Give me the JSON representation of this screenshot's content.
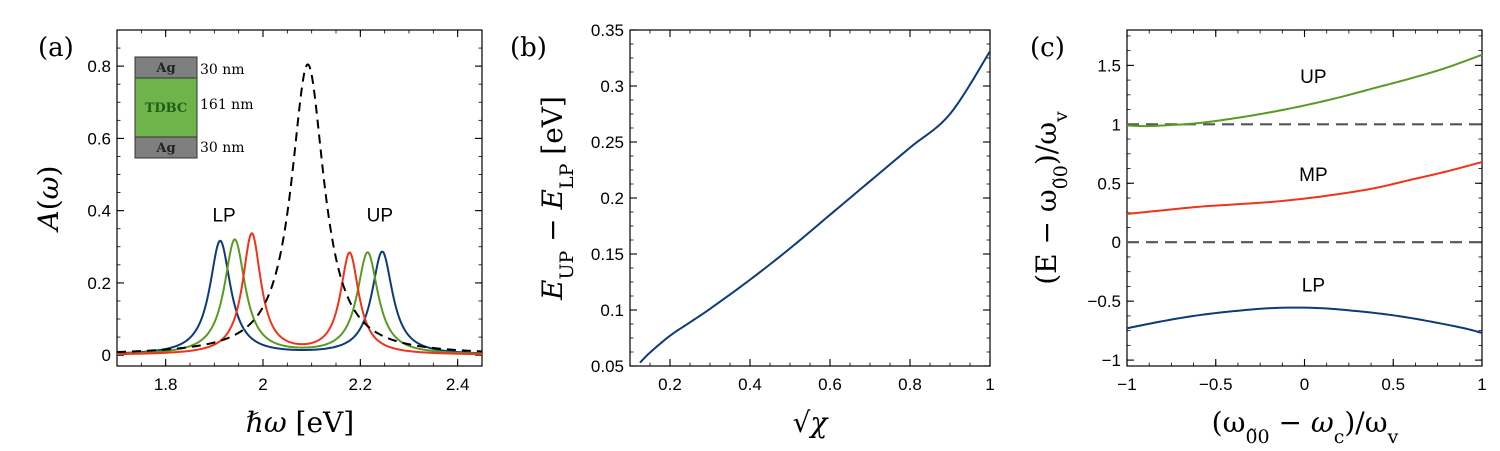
{
  "colors": {
    "blue": "#0d3a78",
    "green": "#5a9a23",
    "red": "#f0341a",
    "black": "#000000",
    "gray": "#555555",
    "ag": "#7f7f7f",
    "tdbc": "#6fb34b"
  },
  "panels": {
    "a": {
      "label": "(a)"
    },
    "b": {
      "label": "(b)"
    },
    "c": {
      "label": "(c)"
    }
  },
  "inset": {
    "layers": [
      {
        "name": "Ag",
        "thickness": "30 nm"
      },
      {
        "name": "TDBC",
        "thickness": "161 nm"
      },
      {
        "name": "Ag",
        "thickness": "30 nm"
      }
    ]
  },
  "chart_data": [
    {
      "id": "a",
      "type": "line",
      "xlabel_parts": [
        "ℏω",
        " [eV]"
      ],
      "ylabel_parts": [
        "A",
        "(",
        "ω",
        ")"
      ],
      "xlim": [
        1.7,
        2.45
      ],
      "ylim": [
        -0.03,
        0.9
      ],
      "xticks": [
        1.8,
        2.0,
        2.2,
        2.4
      ],
      "xtick_labels": [
        "1.8",
        "2",
        "2.2",
        "2.4"
      ],
      "yticks": [
        0,
        0.2,
        0.4,
        0.6,
        0.8
      ],
      "ytick_labels": [
        "0",
        "0.2",
        "0.4",
        "0.6",
        "0.8"
      ],
      "annotations": [
        {
          "text": "LP",
          "x": 1.92,
          "y": 0.37
        },
        {
          "text": "UP",
          "x": 2.24,
          "y": 0.37
        }
      ],
      "series": [
        {
          "color": "blue",
          "dash": false,
          "peaks": [
            {
              "x0": 1.912,
              "h": 0.315,
              "w": 0.026
            },
            {
              "x0": 2.245,
              "h": 0.285,
              "w": 0.026
            }
          ],
          "base": 0.0
        },
        {
          "color": "green",
          "dash": false,
          "peaks": [
            {
              "x0": 1.942,
              "h": 0.318,
              "w": 0.026
            },
            {
              "x0": 2.215,
              "h": 0.282,
              "w": 0.026
            }
          ],
          "base": 0.0
        },
        {
          "color": "red",
          "dash": false,
          "peaks": [
            {
              "x0": 1.977,
              "h": 0.334,
              "w": 0.023
            },
            {
              "x0": 2.178,
              "h": 0.28,
              "w": 0.023
            }
          ],
          "base": 0.0
        },
        {
          "color": "black",
          "dash": true,
          "peaks": [
            {
              "x0": 2.092,
              "h": 0.805,
              "w": 0.041
            }
          ],
          "base": 0.0
        }
      ]
    },
    {
      "id": "b",
      "type": "line",
      "xlabel_parts": [
        "√χ"
      ],
      "ylabel_parts": [
        "E",
        "UP",
        " − ",
        "E",
        "LP",
        "  [eV]"
      ],
      "xlim": [
        0.1,
        1.0
      ],
      "ylim": [
        0.05,
        0.35
      ],
      "xticks": [
        0.2,
        0.4,
        0.6,
        0.8,
        1.0
      ],
      "xtick_labels": [
        "0.2",
        "0.4",
        "0.6",
        "0.8",
        "1"
      ],
      "yticks": [
        0.05,
        0.1,
        0.15,
        0.2,
        0.25,
        0.3,
        0.35
      ],
      "ytick_labels": [
        "0.05",
        "0.1",
        "0.15",
        "0.2",
        "0.25",
        "0.3",
        "0.35"
      ],
      "series": [
        {
          "color": "blue",
          "dash": false,
          "x": [
            0.125,
            0.15,
            0.2,
            0.25,
            0.3,
            0.4,
            0.5,
            0.6,
            0.7,
            0.8,
            0.9,
            1.0
          ],
          "y": [
            0.053,
            0.062,
            0.077,
            0.089,
            0.101,
            0.127,
            0.155,
            0.185,
            0.215,
            0.245,
            0.275,
            0.331
          ]
        }
      ]
    },
    {
      "id": "c",
      "type": "line",
      "xlabel_parts": [
        "(ω",
        "0̃0",
        " − ω",
        "c",
        ")/ω",
        "v"
      ],
      "ylabel_parts": [
        "(E − ω",
        "0̃0",
        ")/ω",
        "v"
      ],
      "xlim": [
        -1.0,
        1.0
      ],
      "ylim": [
        -1.05,
        1.8
      ],
      "xticks": [
        -1.0,
        -0.5,
        0.0,
        0.5,
        1.0
      ],
      "xtick_labels": [
        "−1",
        "−0.5",
        "0",
        "0.5",
        "1"
      ],
      "yticks": [
        -1.0,
        -0.5,
        0.0,
        0.5,
        1.0,
        1.5
      ],
      "ytick_labels": [
        "−1",
        "−0.5",
        "0",
        "0.5",
        "1",
        "1.5"
      ],
      "hlines": [
        {
          "y": 1.0,
          "color": "gray",
          "dash": true
        },
        {
          "y": 0.0,
          "color": "gray",
          "dash": true
        }
      ],
      "annotations": [
        {
          "text": "UP",
          "x": 0.05,
          "y": 1.35
        },
        {
          "text": "MP",
          "x": 0.05,
          "y": 0.52
        },
        {
          "text": "LP",
          "x": 0.05,
          "y": -0.42
        }
      ],
      "series": [
        {
          "color": "green",
          "dash": false,
          "x": [
            -1.0,
            -0.9,
            -0.8,
            -0.6,
            -0.4,
            -0.2,
            0.0,
            0.2,
            0.4,
            0.6,
            0.8,
            1.0
          ],
          "y": [
            0.99,
            0.985,
            0.99,
            1.01,
            1.05,
            1.1,
            1.16,
            1.23,
            1.31,
            1.39,
            1.48,
            1.59
          ]
        },
        {
          "color": "red",
          "dash": false,
          "x": [
            -1.0,
            -0.8,
            -0.6,
            -0.4,
            -0.2,
            0.0,
            0.2,
            0.4,
            0.6,
            0.8,
            1.0
          ],
          "y": [
            0.24,
            0.27,
            0.3,
            0.32,
            0.34,
            0.37,
            0.41,
            0.46,
            0.53,
            0.6,
            0.68
          ]
        },
        {
          "color": "blue",
          "dash": false,
          "x": [
            -1.0,
            -0.8,
            -0.6,
            -0.4,
            -0.2,
            -0.05,
            0.1,
            0.3,
            0.5,
            0.7,
            0.9,
            1.0
          ],
          "y": [
            -0.73,
            -0.67,
            -0.62,
            -0.585,
            -0.56,
            -0.555,
            -0.56,
            -0.585,
            -0.62,
            -0.67,
            -0.73,
            -0.77
          ]
        }
      ]
    }
  ]
}
